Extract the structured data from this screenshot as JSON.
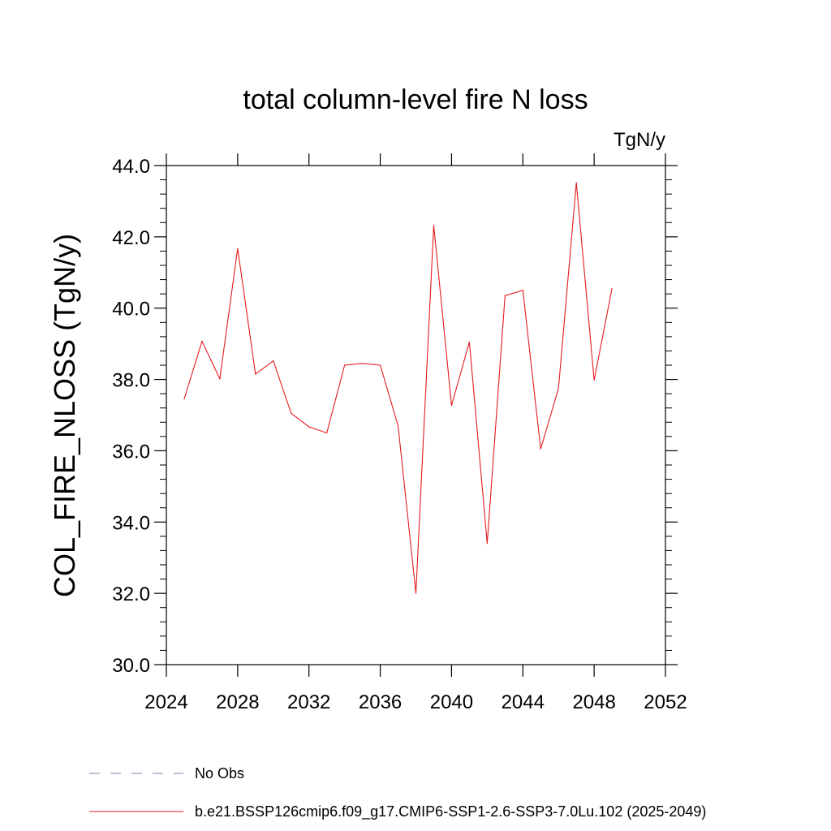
{
  "chart_data": {
    "type": "line",
    "title": "total column-level fire N loss",
    "units": "TgN/y",
    "ylabel": "COL_FIRE_NLOSS  (TgN/y)",
    "xlabel": "",
    "xlim": [
      2024,
      2052
    ],
    "ylim": [
      30,
      44
    ],
    "x_ticks": [
      2024,
      2028,
      2032,
      2036,
      2040,
      2044,
      2048,
      2052
    ],
    "x_tick_labels": [
      "2024",
      "2028",
      "2032",
      "2036",
      "2040",
      "2044",
      "2048",
      "2052"
    ],
    "y_ticks": [
      30,
      32,
      34,
      36,
      38,
      40,
      42,
      44
    ],
    "y_tick_labels": [
      "30.0",
      "32.0",
      "34.0",
      "36.0",
      "38.0",
      "40.0",
      "42.0",
      "44.0"
    ],
    "grid": false,
    "legend_position": "bottom-left",
    "legend": [
      {
        "label": "No Obs",
        "color": "#7f7fb2",
        "style": "dashed"
      },
      {
        "label": "b.e21.BSSP126cmip6.f09_g17.CMIP6-SSP1-2.6-SSP3-7.0Lu.102 (2025-2049)",
        "color": "#e41a1c",
        "style": "solid"
      }
    ],
    "series": [
      {
        "name": "b.e21.BSSP126cmip6.f09_g17.CMIP6-SSP1-2.6-SSP3-7.0Lu.102 (2025-2049)",
        "color": "#e41a1c",
        "x": [
          2025,
          2026,
          2027,
          2028,
          2029,
          2030,
          2031,
          2032,
          2033,
          2034,
          2035,
          2036,
          2037,
          2038,
          2039,
          2040,
          2041,
          2042,
          2043,
          2044,
          2045,
          2046,
          2047,
          2048,
          2049
        ],
        "y": [
          37.45,
          39.07,
          38.02,
          41.67,
          38.15,
          38.52,
          37.05,
          36.67,
          36.5,
          38.4,
          38.45,
          38.4,
          36.7,
          32.0,
          42.32,
          37.27,
          39.05,
          33.4,
          40.35,
          40.5,
          36.05,
          37.75,
          43.52,
          37.98,
          40.55
        ]
      }
    ]
  }
}
